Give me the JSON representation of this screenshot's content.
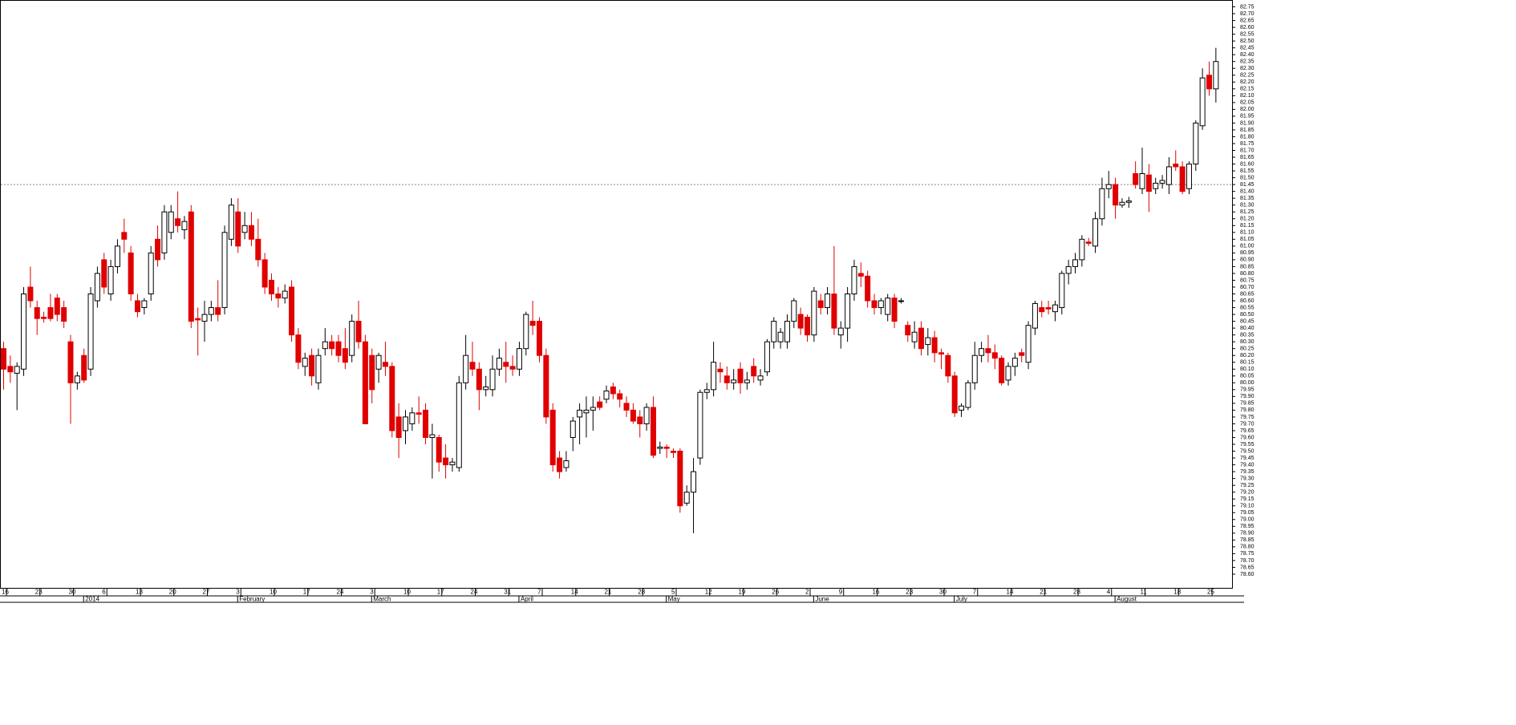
{
  "chart_data": {
    "type": "candlestick",
    "up_color": "#ffffff",
    "down_color": "#e00000",
    "reference_line": 81.45,
    "ylim": [
      78.5,
      82.8
    ],
    "yticks": [
      {
        "value": 78.6,
        "label": "78.60"
      },
      78.65,
      {
        "value": 78.7,
        "label": "78.70"
      },
      78.75,
      {
        "value": 78.8,
        "label": "78.80"
      },
      78.85,
      {
        "value": 78.9,
        "label": "78.90"
      },
      78.95,
      {
        "value": 79,
        "label": "79.00"
      },
      79.05,
      {
        "value": 79.1,
        "label": "79.10"
      },
      79.15,
      {
        "value": 79.2,
        "label": "79.20"
      },
      79.25,
      {
        "value": 79.3,
        "label": "79.30"
      },
      79.35,
      {
        "value": 79.4,
        "label": "79.40"
      },
      79.45,
      {
        "value": 79.5,
        "label": "79.50"
      },
      79.55,
      {
        "value": 79.6,
        "label": "79.60"
      },
      79.65,
      {
        "value": 79.7,
        "label": "79.70"
      },
      79.75,
      {
        "value": 79.8,
        "label": "79.80"
      },
      79.85,
      {
        "value": 79.9,
        "label": "79.90"
      },
      79.95,
      {
        "value": 80,
        "label": "80.00"
      },
      80.05,
      {
        "value": 80.1,
        "label": "80.10"
      },
      80.15,
      {
        "value": 80.2,
        "label": "80.20"
      },
      80.25,
      {
        "value": 80.3,
        "label": "80.30"
      },
      80.35,
      {
        "value": 80.4,
        "label": "80.40"
      },
      80.45,
      {
        "value": 80.5,
        "label": "80.50"
      },
      80.55,
      {
        "value": 80.6,
        "label": "80.60"
      },
      80.65,
      {
        "value": 80.7,
        "label": "80.70"
      },
      80.75,
      {
        "value": 80.8,
        "label": "80.80"
      },
      80.85,
      {
        "value": 80.9,
        "label": "80.90"
      },
      80.95,
      {
        "value": 81,
        "label": "81.00"
      },
      81.05,
      {
        "value": 81.1,
        "label": "81.10"
      },
      81.15,
      {
        "value": 81.2,
        "label": "81.20"
      },
      81.25,
      {
        "value": 81.3,
        "label": "81.30"
      },
      81.35,
      {
        "value": 81.4,
        "label": "81.40"
      },
      81.45,
      {
        "value": 81.5,
        "label": "81.50"
      },
      81.55,
      {
        "value": 81.6,
        "label": "81.60"
      },
      81.65,
      {
        "value": 81.7,
        "label": "81.70"
      },
      81.75,
      {
        "value": 81.8,
        "label": "81.80"
      },
      81.85,
      {
        "value": 81.9,
        "label": "81.90"
      },
      81.95,
      {
        "value": 82,
        "label": "82.00"
      },
      82.05,
      {
        "value": 82.1,
        "label": "82.10"
      },
      82.15,
      {
        "value": 82.2,
        "label": "82.20"
      },
      82.25,
      {
        "value": 82.3,
        "label": "82.30"
      },
      82.35,
      {
        "value": 82.4,
        "label": "82.40"
      },
      82.45,
      {
        "value": 82.5,
        "label": "82.50"
      },
      82.55,
      {
        "value": 82.6,
        "label": "82.60"
      },
      82.65,
      {
        "value": 82.7,
        "label": "82.70"
      },
      82.75
    ],
    "categories": [
      "16",
      null,
      null,
      null,
      null,
      "23",
      null,
      null,
      null,
      null,
      "30",
      null,
      null,
      null,
      null,
      "6",
      null,
      null,
      null,
      null,
      "13",
      null,
      null,
      null,
      null,
      "20",
      null,
      null,
      null,
      null,
      "27",
      null,
      null,
      null,
      null,
      "3",
      null,
      null,
      null,
      null,
      "10",
      null,
      null,
      null,
      null,
      "17",
      null,
      null,
      null,
      null,
      "24",
      null,
      null,
      null,
      null,
      "3",
      null,
      null,
      null,
      null,
      "10",
      null,
      null,
      null,
      null,
      "17",
      null,
      null,
      null,
      null,
      "24",
      null,
      null,
      null,
      null,
      "31",
      null,
      null,
      null,
      null,
      "7",
      null,
      null,
      null,
      null,
      "14",
      null,
      null,
      null,
      null,
      "21",
      null,
      null,
      null,
      null,
      "28",
      null,
      null,
      null,
      null,
      "5",
      null,
      null,
      null,
      null,
      "12",
      null,
      null,
      null,
      null,
      "19",
      null,
      null,
      null,
      null,
      "26",
      null,
      null,
      null,
      null,
      "2",
      null,
      null,
      null,
      null,
      "9",
      null,
      null,
      null,
      null,
      "16",
      null,
      null,
      null,
      null,
      "23",
      null,
      null,
      null,
      null,
      "30",
      null,
      null,
      null,
      null,
      "7",
      null,
      null,
      null,
      null,
      "14",
      null,
      null,
      null,
      null,
      "21",
      null,
      null,
      null,
      null,
      "28",
      null,
      null,
      null,
      null,
      "4",
      null,
      null,
      null,
      null,
      "11",
      null,
      null,
      null,
      null,
      "18",
      null,
      null,
      null,
      null,
      "25",
      null
    ],
    "months": [
      {
        "label": "2014",
        "index": 12
      },
      {
        "label": "February",
        "index": 35
      },
      {
        "label": "March",
        "index": 55
      },
      {
        "label": "April",
        "index": 77
      },
      {
        "label": "May",
        "index": 99
      },
      {
        "label": "June",
        "index": 121
      },
      {
        "label": "July",
        "index": 142
      },
      {
        "label": "August",
        "index": 166
      }
    ],
    "ohlc": [
      [
        80.25,
        80.3,
        79.95,
        80.1
      ],
      [
        80.12,
        80.2,
        80.0,
        80.08
      ],
      [
        80.07,
        80.15,
        79.8,
        80.12
      ],
      [
        80.1,
        80.7,
        80.05,
        80.65
      ],
      [
        80.7,
        80.85,
        80.55,
        80.6
      ],
      [
        80.55,
        80.6,
        80.35,
        80.47
      ],
      [
        80.48,
        80.52,
        80.44,
        80.47
      ],
      [
        80.55,
        80.65,
        80.45,
        80.47
      ],
      [
        80.62,
        80.65,
        80.45,
        80.5
      ],
      [
        80.55,
        80.6,
        80.4,
        80.45
      ],
      [
        80.3,
        80.35,
        79.7,
        80.0
      ],
      [
        80.0,
        80.08,
        79.95,
        80.05
      ],
      [
        80.2,
        80.25,
        80.0,
        80.02
      ],
      [
        80.1,
        80.7,
        80.05,
        80.65
      ],
      [
        80.6,
        80.85,
        80.55,
        80.8
      ],
      [
        80.9,
        80.95,
        80.65,
        80.7
      ],
      [
        80.65,
        80.9,
        80.6,
        80.85
      ],
      [
        80.85,
        81.05,
        80.8,
        81.0
      ],
      [
        81.1,
        81.2,
        80.95,
        81.05
      ],
      [
        80.95,
        81.0,
        80.6,
        80.65
      ],
      [
        80.6,
        80.65,
        80.48,
        80.52
      ],
      [
        80.55,
        80.62,
        80.5,
        80.6
      ],
      [
        80.65,
        81.0,
        80.6,
        80.95
      ],
      [
        81.05,
        81.15,
        80.85,
        80.9
      ],
      [
        80.95,
        81.3,
        80.9,
        81.25
      ],
      [
        81.1,
        81.3,
        81.05,
        81.25
      ],
      [
        81.2,
        81.4,
        81.1,
        81.15
      ],
      [
        81.12,
        81.22,
        81.05,
        81.18
      ],
      [
        81.25,
        81.3,
        80.4,
        80.45
      ],
      [
        80.47,
        80.55,
        80.2,
        80.46
      ],
      [
        80.45,
        80.6,
        80.3,
        80.5
      ],
      [
        80.5,
        80.6,
        80.45,
        80.55
      ],
      [
        80.55,
        80.75,
        80.45,
        80.5
      ],
      [
        80.55,
        81.15,
        80.5,
        81.1
      ],
      [
        81.05,
        81.35,
        81.0,
        81.3
      ],
      [
        81.25,
        81.35,
        80.95,
        81.0
      ],
      [
        81.1,
        81.25,
        81.05,
        81.15
      ],
      [
        81.15,
        81.25,
        81.0,
        81.05
      ],
      [
        81.05,
        81.2,
        80.85,
        80.9
      ],
      [
        80.9,
        80.95,
        80.65,
        80.7
      ],
      [
        80.75,
        80.8,
        80.6,
        80.65
      ],
      [
        80.65,
        80.7,
        80.55,
        80.62
      ],
      [
        80.62,
        80.72,
        80.58,
        80.67
      ],
      [
        80.7,
        80.75,
        80.3,
        80.35
      ],
      [
        80.35,
        80.4,
        80.1,
        80.15
      ],
      [
        80.12,
        80.22,
        80.05,
        80.18
      ],
      [
        80.2,
        80.25,
        79.98,
        80.05
      ],
      [
        80.0,
        80.25,
        79.95,
        80.2
      ],
      [
        80.25,
        80.4,
        80.2,
        80.3
      ],
      [
        80.3,
        80.35,
        80.2,
        80.25
      ],
      [
        80.3,
        80.35,
        80.15,
        80.2
      ],
      [
        80.25,
        80.4,
        80.1,
        80.15
      ],
      [
        80.2,
        80.5,
        80.15,
        80.45
      ],
      [
        80.45,
        80.6,
        80.25,
        80.3
      ],
      [
        80.3,
        80.35,
        79.7,
        79.7
      ],
      [
        80.2,
        80.25,
        79.85,
        79.95
      ],
      [
        80.1,
        80.22,
        80.0,
        80.2
      ],
      [
        80.15,
        80.3,
        80.05,
        80.12
      ],
      [
        80.12,
        80.15,
        79.6,
        79.65
      ],
      [
        79.75,
        79.85,
        79.45,
        79.6
      ],
      [
        79.65,
        79.8,
        79.55,
        79.75
      ],
      [
        79.7,
        79.82,
        79.65,
        79.78
      ],
      [
        79.78,
        79.9,
        79.7,
        79.77
      ],
      [
        79.8,
        79.85,
        79.55,
        79.6
      ],
      [
        79.6,
        79.7,
        79.3,
        79.62
      ],
      [
        79.6,
        79.62,
        79.35,
        79.42
      ],
      [
        79.45,
        79.55,
        79.3,
        79.4
      ],
      [
        79.4,
        79.45,
        79.35,
        79.42
      ],
      [
        79.38,
        80.05,
        79.35,
        80.0
      ],
      [
        80.0,
        80.35,
        79.95,
        80.2
      ],
      [
        80.15,
        80.3,
        80.05,
        80.1
      ],
      [
        80.1,
        80.15,
        79.8,
        79.95
      ],
      [
        79.95,
        80.05,
        79.9,
        79.97
      ],
      [
        79.95,
        80.2,
        79.9,
        80.1
      ],
      [
        80.1,
        80.25,
        80.05,
        80.18
      ],
      [
        80.15,
        80.3,
        80.0,
        80.12
      ],
      [
        80.12,
        80.2,
        80.05,
        80.1
      ],
      [
        80.1,
        80.3,
        80.05,
        80.25
      ],
      [
        80.25,
        80.52,
        80.2,
        80.5
      ],
      [
        80.45,
        80.6,
        80.35,
        80.42
      ],
      [
        80.45,
        80.48,
        80.15,
        80.2
      ],
      [
        80.2,
        80.25,
        79.7,
        79.75
      ],
      [
        79.8,
        79.85,
        79.35,
        79.4
      ],
      [
        79.45,
        79.5,
        79.3,
        79.35
      ],
      [
        79.38,
        79.5,
        79.35,
        79.43
      ],
      [
        79.6,
        79.75,
        79.5,
        79.72
      ],
      [
        79.75,
        79.85,
        79.55,
        79.8
      ],
      [
        79.78,
        79.9,
        79.6,
        79.8
      ],
      [
        79.8,
        79.9,
        79.65,
        79.82
      ],
      [
        79.86,
        79.9,
        79.8,
        79.82
      ],
      [
        79.88,
        79.98,
        79.85,
        79.94
      ],
      [
        79.97,
        80.0,
        79.88,
        79.92
      ],
      [
        79.92,
        79.95,
        79.82,
        79.88
      ],
      [
        79.85,
        79.9,
        79.75,
        79.8
      ],
      [
        79.8,
        79.85,
        79.7,
        79.72
      ],
      [
        79.75,
        79.8,
        79.6,
        79.7
      ],
      [
        79.7,
        79.85,
        79.65,
        79.82
      ],
      [
        79.82,
        79.9,
        79.45,
        79.47
      ],
      [
        79.52,
        79.57,
        79.48,
        79.53
      ],
      [
        79.53,
        79.55,
        79.45,
        79.52
      ],
      [
        79.5,
        79.52,
        79.45,
        79.49
      ],
      [
        79.5,
        79.52,
        79.05,
        79.1
      ],
      [
        79.12,
        79.25,
        79.1,
        79.2
      ],
      [
        79.2,
        79.45,
        78.9,
        79.35
      ],
      [
        79.45,
        79.95,
        79.4,
        79.93
      ],
      [
        79.93,
        80.0,
        79.88,
        79.95
      ],
      [
        79.95,
        80.3,
        79.9,
        80.15
      ],
      [
        80.1,
        80.15,
        80.0,
        80.08
      ],
      [
        80.05,
        80.12,
        79.95,
        80.0
      ],
      [
        80.0,
        80.1,
        79.95,
        80.02
      ],
      [
        80.1,
        80.15,
        79.92,
        80.0
      ],
      [
        80.0,
        80.08,
        79.95,
        80.02
      ],
      [
        80.12,
        80.18,
        80.0,
        80.05
      ],
      [
        80.02,
        80.1,
        79.98,
        80.05
      ],
      [
        80.08,
        80.32,
        80.05,
        80.3
      ],
      [
        80.3,
        80.48,
        80.25,
        80.45
      ],
      [
        80.3,
        80.4,
        80.25,
        80.37
      ],
      [
        80.3,
        80.5,
        80.25,
        80.45
      ],
      [
        80.45,
        80.62,
        80.4,
        80.6
      ],
      [
        80.5,
        80.55,
        80.35,
        80.4
      ],
      [
        80.48,
        80.5,
        80.3,
        80.35
      ],
      [
        80.35,
        80.7,
        80.3,
        80.67
      ],
      [
        80.6,
        80.65,
        80.5,
        80.55
      ],
      [
        80.55,
        80.7,
        80.5,
        80.65
      ],
      [
        80.65,
        81.0,
        80.35,
        80.4
      ],
      [
        80.35,
        80.45,
        80.25,
        80.4
      ],
      [
        80.4,
        80.7,
        80.3,
        80.65
      ],
      [
        80.65,
        80.9,
        80.6,
        80.85
      ],
      [
        80.8,
        80.88,
        80.7,
        80.78
      ],
      [
        80.78,
        80.82,
        80.55,
        80.6
      ],
      [
        80.6,
        80.65,
        80.5,
        80.55
      ],
      [
        80.55,
        80.62,
        80.5,
        80.6
      ],
      [
        80.5,
        80.65,
        80.45,
        80.62
      ],
      [
        80.62,
        80.65,
        80.4,
        80.45
      ],
      [
        80.6,
        80.62,
        80.58,
        80.6
      ],
      [
        80.42,
        80.45,
        80.3,
        80.35
      ],
      [
        80.3,
        80.45,
        80.25,
        80.37
      ],
      [
        80.4,
        80.45,
        80.2,
        80.25
      ],
      [
        80.28,
        80.4,
        80.2,
        80.33
      ],
      [
        80.33,
        80.38,
        80.15,
        80.22
      ],
      [
        80.22,
        80.25,
        80.1,
        80.21
      ],
      [
        80.2,
        80.22,
        80.0,
        80.05
      ],
      [
        80.05,
        80.08,
        79.75,
        79.78
      ],
      [
        79.8,
        79.85,
        79.75,
        79.83
      ],
      [
        79.82,
        80.02,
        79.8,
        80.0
      ],
      [
        80.0,
        80.3,
        79.95,
        80.2
      ],
      [
        80.2,
        80.3,
        80.15,
        80.25
      ],
      [
        80.25,
        80.35,
        80.15,
        80.22
      ],
      [
        80.22,
        80.28,
        80.1,
        80.18
      ],
      [
        80.18,
        80.2,
        79.98,
        80.0
      ],
      [
        80.02,
        80.15,
        79.98,
        80.12
      ],
      [
        80.12,
        80.22,
        80.05,
        80.18
      ],
      [
        80.22,
        80.25,
        80.15,
        80.2
      ],
      [
        80.15,
        80.45,
        80.1,
        80.42
      ],
      [
        80.4,
        80.6,
        80.35,
        80.58
      ],
      [
        80.55,
        80.6,
        80.48,
        80.52
      ],
      [
        80.55,
        80.6,
        80.5,
        80.54
      ],
      [
        80.52,
        80.6,
        80.45,
        80.57
      ],
      [
        80.55,
        80.82,
        80.5,
        80.8
      ],
      [
        80.8,
        80.9,
        80.72,
        80.85
      ],
      [
        80.85,
        80.95,
        80.8,
        80.9
      ],
      [
        80.9,
        81.08,
        80.85,
        81.05
      ],
      [
        81.03,
        81.06,
        81.0,
        81.02
      ],
      [
        81.0,
        81.25,
        80.95,
        81.2
      ],
      [
        81.2,
        81.5,
        81.15,
        81.42
      ],
      [
        81.42,
        81.55,
        81.35,
        81.45
      ],
      [
        81.45,
        81.5,
        81.2,
        81.3
      ],
      [
        81.3,
        81.35,
        81.28,
        81.32
      ],
      [
        81.32,
        81.36,
        81.28,
        81.33
      ],
      [
        81.53,
        81.62,
        81.42,
        81.45
      ],
      [
        81.42,
        81.72,
        81.38,
        81.53
      ],
      [
        81.52,
        81.6,
        81.25,
        81.4
      ],
      [
        81.42,
        81.5,
        81.38,
        81.46
      ],
      [
        81.46,
        81.52,
        81.42,
        81.48
      ],
      [
        81.45,
        81.65,
        81.38,
        81.58
      ],
      [
        81.6,
        81.7,
        81.55,
        81.58
      ],
      [
        81.58,
        81.62,
        81.38,
        81.4
      ],
      [
        81.42,
        81.62,
        81.38,
        81.6
      ],
      [
        81.6,
        81.92,
        81.55,
        81.9
      ],
      [
        81.88,
        82.3,
        81.85,
        82.23
      ],
      [
        82.25,
        82.35,
        82.1,
        82.15
      ],
      [
        82.15,
        82.45,
        82.05,
        82.35
      ]
    ]
  }
}
